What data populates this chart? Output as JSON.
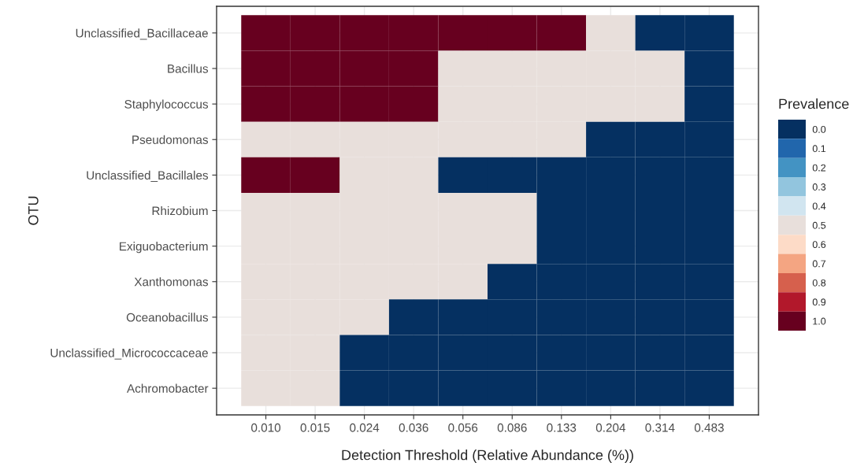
{
  "chart_data": {
    "type": "heatmap",
    "xlabel": "Detection Threshold (Relative Abundance (%))",
    "ylabel": "OTU",
    "clabel": "Prevalence",
    "categories": [
      "0.010",
      "0.015",
      "0.024",
      "0.036",
      "0.056",
      "0.086",
      "0.133",
      "0.204",
      "0.314",
      "0.483"
    ],
    "y_categories": [
      "Unclassified_Bacillaceae",
      "Bacillus",
      "Staphylococcus",
      "Pseudomonas",
      "Unclassified_Bacillales",
      "Rhizobium",
      "Exiguobacterium",
      "Xanthomonas",
      "Oceanobacillus",
      "Unclassified_Micrococcaceae",
      "Achromobacter"
    ],
    "cells": [
      [
        1.0,
        1.0,
        1.0,
        1.0,
        1.0,
        1.0,
        1.0,
        0.5,
        0.0,
        0.0
      ],
      [
        1.0,
        1.0,
        1.0,
        1.0,
        0.5,
        0.5,
        0.5,
        0.5,
        0.5,
        0.0
      ],
      [
        1.0,
        1.0,
        1.0,
        1.0,
        0.5,
        0.5,
        0.5,
        0.5,
        0.5,
        0.0
      ],
      [
        0.5,
        0.5,
        0.5,
        0.5,
        0.5,
        0.5,
        0.5,
        0.0,
        0.0,
        0.0
      ],
      [
        1.0,
        1.0,
        0.5,
        0.5,
        0.0,
        0.0,
        0.0,
        0.0,
        0.0,
        0.0
      ],
      [
        0.5,
        0.5,
        0.5,
        0.5,
        0.5,
        0.5,
        0.0,
        0.0,
        0.0,
        0.0
      ],
      [
        0.5,
        0.5,
        0.5,
        0.5,
        0.5,
        0.5,
        0.0,
        0.0,
        0.0,
        0.0
      ],
      [
        0.5,
        0.5,
        0.5,
        0.5,
        0.5,
        0.0,
        0.0,
        0.0,
        0.0,
        0.0
      ],
      [
        0.5,
        0.5,
        0.5,
        0.0,
        0.0,
        0.0,
        0.0,
        0.0,
        0.0,
        0.0
      ],
      [
        0.5,
        0.5,
        0.0,
        0.0,
        0.0,
        0.0,
        0.0,
        0.0,
        0.0,
        0.0
      ],
      [
        0.5,
        0.5,
        0.0,
        0.0,
        0.0,
        0.0,
        0.0,
        0.0,
        0.0,
        0.0
      ]
    ],
    "clim": [
      -0.05,
      1.05
    ],
    "cticks": [
      {
        "value": 0.0,
        "label": "0.0"
      },
      {
        "value": 0.1,
        "label": "0.1"
      },
      {
        "value": 0.2,
        "label": "0.2"
      },
      {
        "value": 0.3,
        "label": "0.3"
      },
      {
        "value": 0.4,
        "label": "0.4"
      },
      {
        "value": 0.5,
        "label": "0.5"
      },
      {
        "value": 0.6,
        "label": "0.6"
      },
      {
        "value": 0.7,
        "label": "0.7"
      },
      {
        "value": 0.8,
        "label": "0.8"
      },
      {
        "value": 0.9,
        "label": "0.9"
      },
      {
        "value": 1.0,
        "label": "1.0"
      }
    ],
    "grid": true
  }
}
